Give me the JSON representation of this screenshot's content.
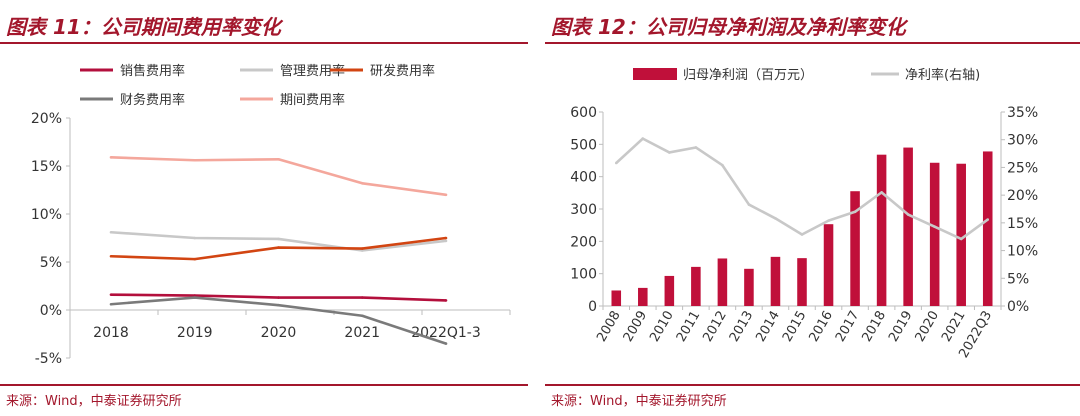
{
  "colors": {
    "accent": "#a3172c",
    "sales": "#b30f3c",
    "admin": "#c8c8c8",
    "rd": "#d24512",
    "fin": "#7a7a7a",
    "period": "#f4a79c",
    "bar": "#c0103a",
    "margin": "#c8c8c8"
  },
  "left": {
    "title": "图表 11：公司期间费用率变化",
    "source": "来源：Wind，中泰证券研究所",
    "chart_data": {
      "type": "line",
      "categories": [
        "2018",
        "2019",
        "2020",
        "2021",
        "2022Q1-3"
      ],
      "ylim": [
        -5,
        20
      ],
      "yticks": [
        -5,
        0,
        5,
        10,
        15,
        20
      ],
      "ytick_labels": [
        "-5%",
        "0%",
        "5%",
        "10%",
        "15%",
        "20%"
      ],
      "grid": false,
      "legend": "top",
      "series": [
        {
          "key": "sales",
          "name": "销售费用率",
          "values": [
            1.6,
            1.5,
            1.3,
            1.3,
            1.0
          ]
        },
        {
          "key": "admin",
          "name": "管理费用率",
          "values": [
            8.1,
            7.5,
            7.4,
            6.2,
            7.2
          ]
        },
        {
          "key": "rd",
          "name": "研发费用率",
          "values": [
            5.6,
            5.3,
            6.5,
            6.4,
            7.5
          ]
        },
        {
          "key": "fin",
          "name": "财务费用率",
          "values": [
            0.6,
            1.3,
            0.5,
            -0.6,
            -3.5
          ]
        },
        {
          "key": "period",
          "name": "期间费用率",
          "values": [
            15.9,
            15.6,
            15.7,
            13.2,
            12.0
          ]
        }
      ]
    }
  },
  "right": {
    "title": "图表 12：公司归母净利润及净利率变化",
    "source": "来源：Wind，中泰证券研究所",
    "chart_data": {
      "type": "bar",
      "categories": [
        "2008",
        "2009",
        "2010",
        "2011",
        "2012",
        "2013",
        "2014",
        "2015",
        "2016",
        "2017",
        "2018",
        "2019",
        "2020",
        "2021",
        "2022Q3"
      ],
      "ylim": [
        0,
        600
      ],
      "yticks": [
        0,
        100,
        200,
        300,
        400,
        500,
        600
      ],
      "y2lim": [
        0,
        35
      ],
      "y2ticks": [
        0,
        5,
        10,
        15,
        20,
        25,
        30,
        35
      ],
      "y2tick_labels": [
        "0%",
        "5%",
        "10%",
        "15%",
        "20%",
        "25%",
        "30%",
        "35%"
      ],
      "grid": false,
      "legend": "top",
      "series": [
        {
          "key": "bar",
          "type": "bar",
          "name": "归母净利润（百万元）",
          "values": [
            48,
            56,
            93,
            121,
            147,
            115,
            152,
            148,
            253,
            355,
            468,
            490,
            443,
            440,
            478
          ]
        },
        {
          "key": "margin",
          "type": "line",
          "axis": "right",
          "name": "净利率(右轴)",
          "values": [
            25.8,
            30.2,
            27.7,
            28.6,
            25.4,
            18.3,
            15.8,
            12.9,
            15.4,
            17.0,
            20.5,
            16.5,
            14.3,
            12.1,
            15.6
          ]
        }
      ]
    }
  }
}
